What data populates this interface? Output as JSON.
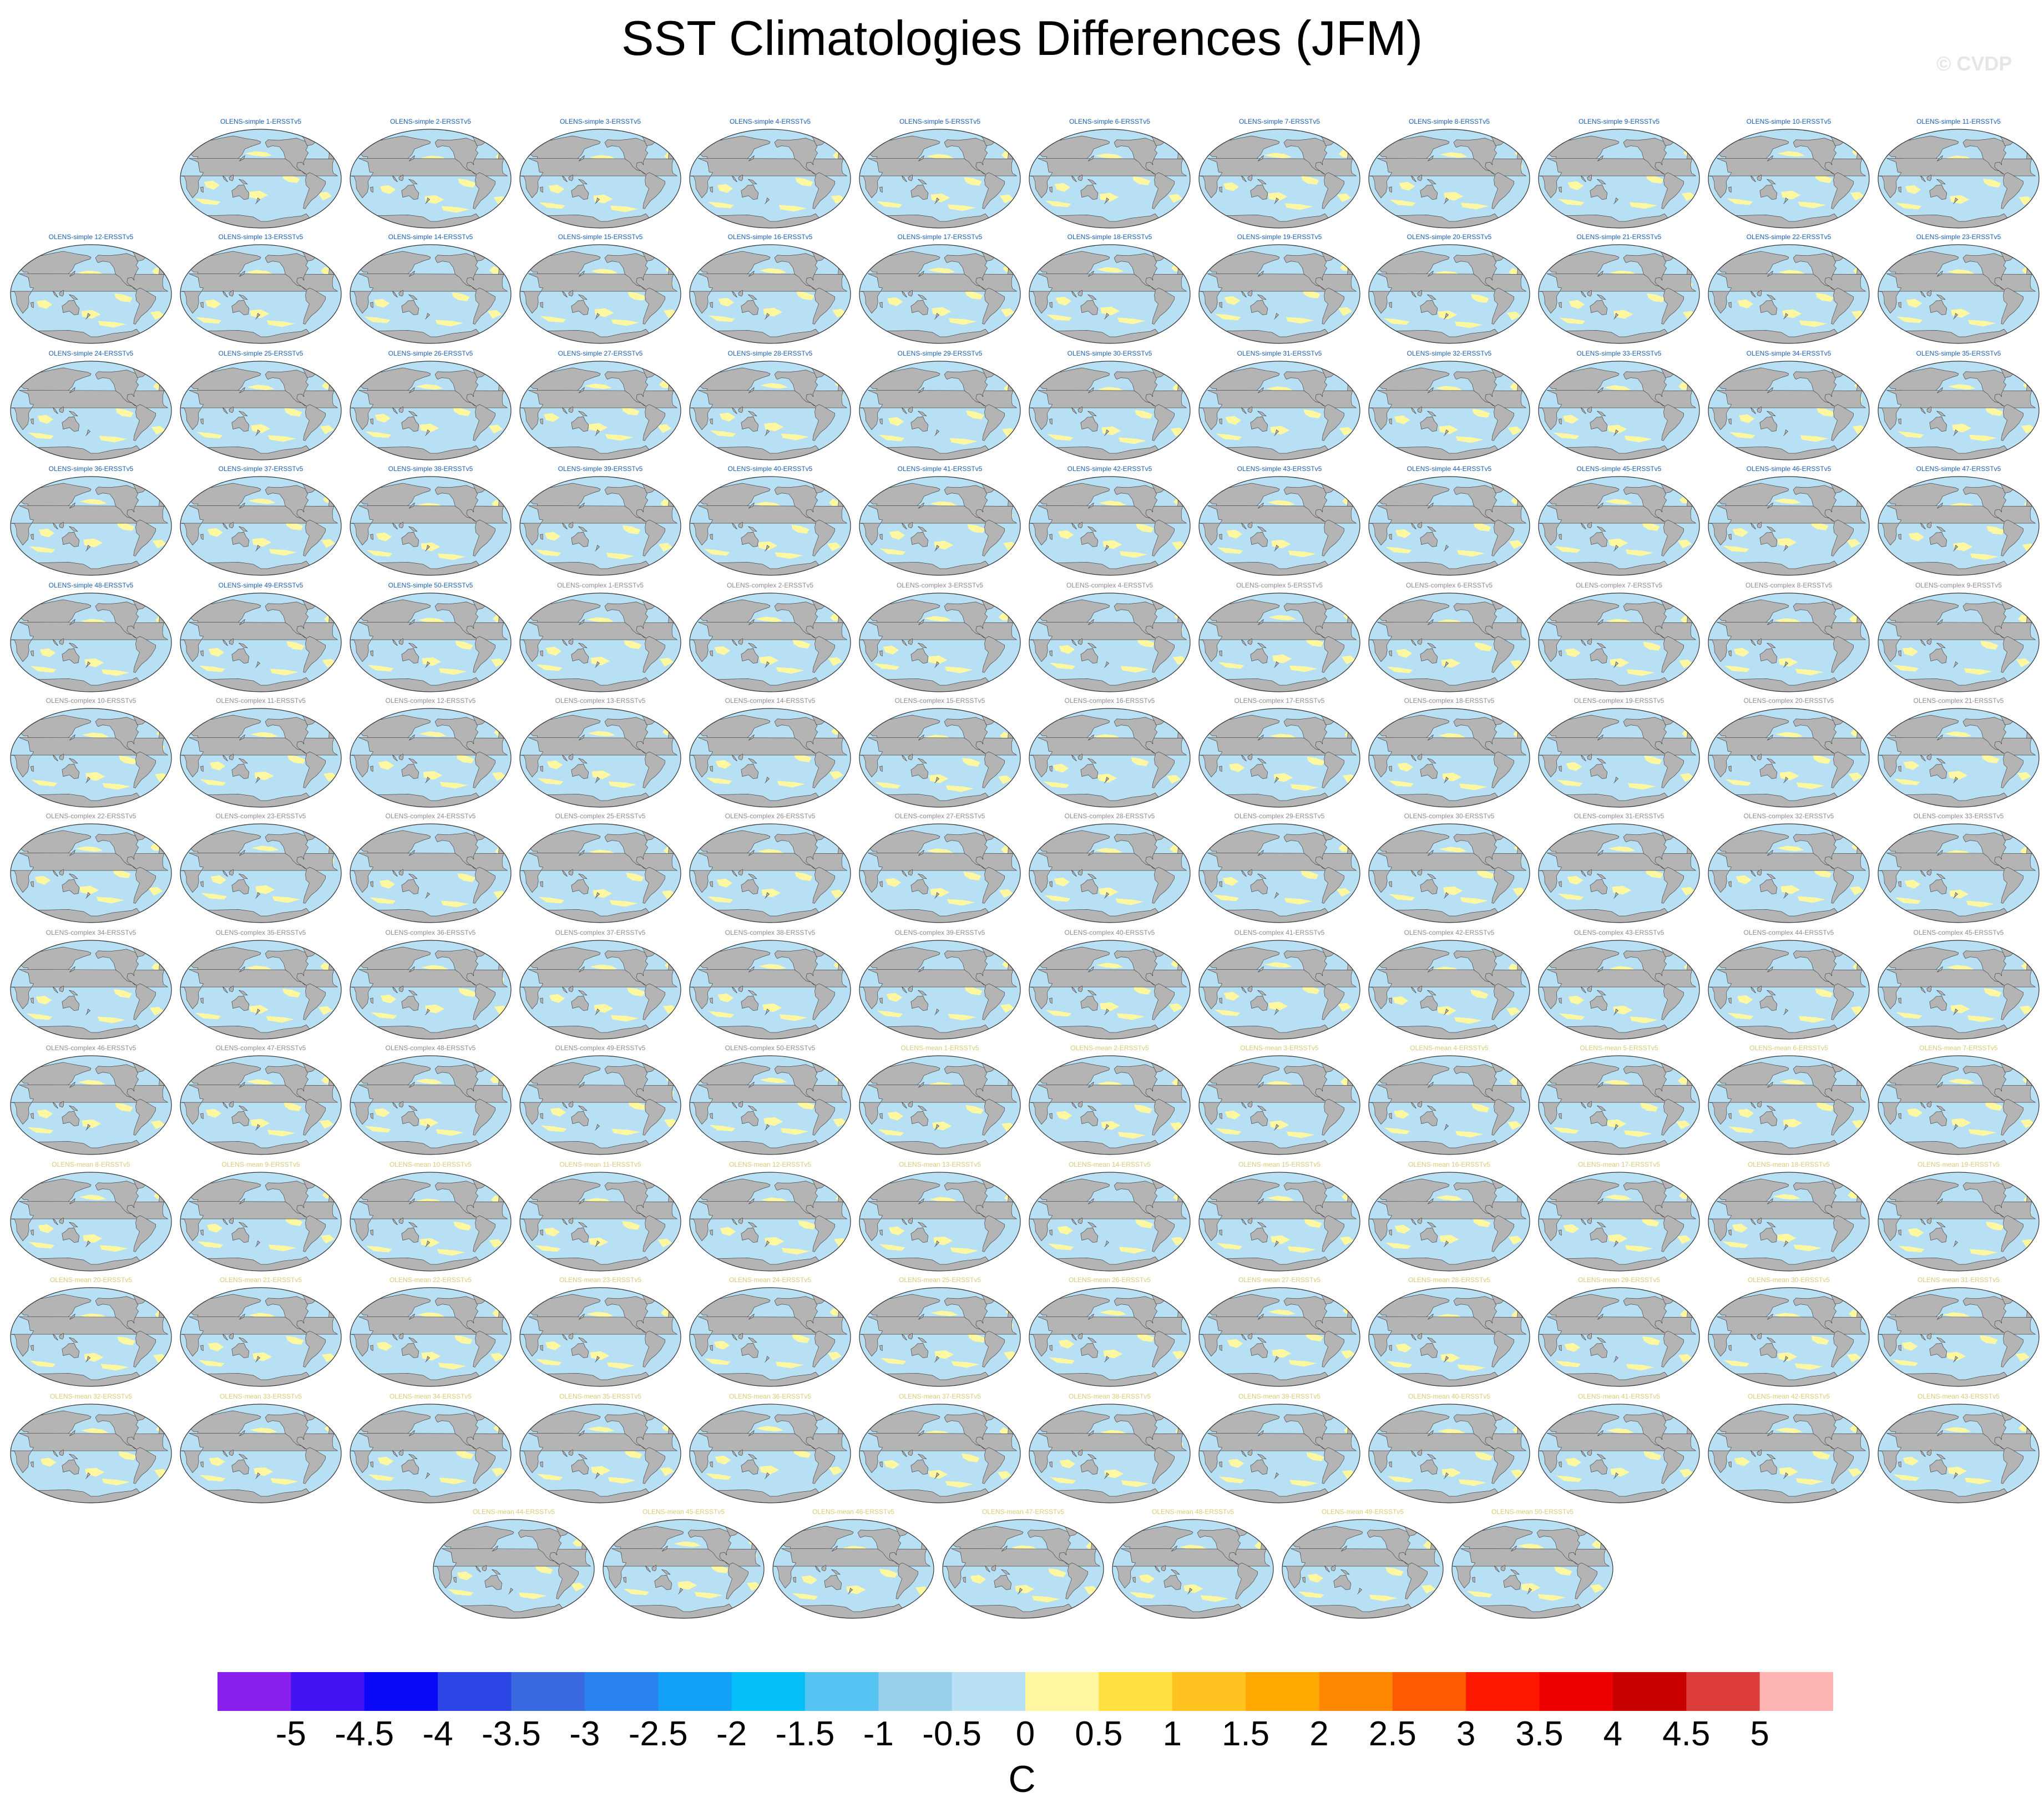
{
  "chart_data": {
    "type": "panel-grid of global map contour plots with shared colorbar",
    "title": "SST Climatologies Differences (JFM)",
    "watermark": "© CVDP",
    "colorbar": {
      "units": "C",
      "tick_labels": [
        "-5",
        "-4.5",
        "-4",
        "-3.5",
        "-3",
        "-2.5",
        "-2",
        "-1.5",
        "-1",
        "-0.5",
        "0",
        "0.5",
        "1",
        "1.5",
        "2",
        "2.5",
        "3",
        "3.5",
        "4",
        "4.5",
        "5"
      ],
      "colors": [
        "#8a1ff0",
        "#4212f4",
        "#0a0af8",
        "#2d46e6",
        "#3a6ae0",
        "#2a82f0",
        "#12a0f8",
        "#05c0f8",
        "#56c4f2",
        "#98cfeb",
        "#b8e0f5",
        "#fff8a0",
        "#ffe040",
        "#ffc21e",
        "#ffa800",
        "#ff8800",
        "#ff5a00",
        "#ff1800",
        "#ee0000",
        "#c80000",
        "#dc3c3c",
        "#ffb4b4"
      ]
    },
    "palette": {
      "ocean_cool": "#b8e0f5",
      "ocean_warm": "#fff8a0",
      "land": "#b4b4b4",
      "title_simple": "#1b5fb4",
      "title_complex": "#8c8c8c",
      "title_mean": "#d8cc78"
    },
    "panels": [
      "OLENS-simple 1-ERSSTv5",
      "OLENS-simple 2-ERSSTv5",
      "OLENS-simple 3-ERSSTv5",
      "OLENS-simple 4-ERSSTv5",
      "OLENS-simple 5-ERSSTv5",
      "OLENS-simple 6-ERSSTv5",
      "OLENS-simple 7-ERSSTv5",
      "OLENS-simple 8-ERSSTv5",
      "OLENS-simple 9-ERSSTv5",
      "OLENS-simple 10-ERSSTv5",
      "OLENS-simple 11-ERSSTv5",
      "OLENS-simple 12-ERSSTv5",
      "OLENS-simple 13-ERSSTv5",
      "OLENS-simple 14-ERSSTv5",
      "OLENS-simple 15-ERSSTv5",
      "OLENS-simple 16-ERSSTv5",
      "OLENS-simple 17-ERSSTv5",
      "OLENS-simple 18-ERSSTv5",
      "OLENS-simple 19-ERSSTv5",
      "OLENS-simple 20-ERSSTv5",
      "OLENS-simple 21-ERSSTv5",
      "OLENS-simple 22-ERSSTv5",
      "OLENS-simple 23-ERSSTv5",
      "OLENS-simple 24-ERSSTv5",
      "OLENS-simple 25-ERSSTv5",
      "OLENS-simple 26-ERSSTv5",
      "OLENS-simple 27-ERSSTv5",
      "OLENS-simple 28-ERSSTv5",
      "OLENS-simple 29-ERSSTv5",
      "OLENS-simple 30-ERSSTv5",
      "OLENS-simple 31-ERSSTv5",
      "OLENS-simple 32-ERSSTv5",
      "OLENS-simple 33-ERSSTv5",
      "OLENS-simple 34-ERSSTv5",
      "OLENS-simple 35-ERSSTv5",
      "OLENS-simple 36-ERSSTv5",
      "OLENS-simple 37-ERSSTv5",
      "OLENS-simple 38-ERSSTv5",
      "OLENS-simple 39-ERSSTv5",
      "OLENS-simple 40-ERSSTv5",
      "OLENS-simple 41-ERSSTv5",
      "OLENS-simple 42-ERSSTv5",
      "OLENS-simple 43-ERSSTv5",
      "OLENS-simple 44-ERSSTv5",
      "OLENS-simple 45-ERSSTv5",
      "OLENS-simple 46-ERSSTv5",
      "OLENS-simple 47-ERSSTv5",
      "OLENS-simple 48-ERSSTv5",
      "OLENS-simple 49-ERSSTv5",
      "OLENS-simple 50-ERSSTv5",
      "OLENS-complex 1-ERSSTv5",
      "OLENS-complex 2-ERSSTv5",
      "OLENS-complex 3-ERSSTv5",
      "OLENS-complex 4-ERSSTv5",
      "OLENS-complex 5-ERSSTv5",
      "OLENS-complex 6-ERSSTv5",
      "OLENS-complex 7-ERSSTv5",
      "OLENS-complex 8-ERSSTv5",
      "OLENS-complex 9-ERSSTv5",
      "OLENS-complex 10-ERSSTv5",
      "OLENS-complex 11-ERSSTv5",
      "OLENS-complex 12-ERSSTv5",
      "OLENS-complex 13-ERSSTv5",
      "OLENS-complex 14-ERSSTv5",
      "OLENS-complex 15-ERSSTv5",
      "OLENS-complex 16-ERSSTv5",
      "OLENS-complex 17-ERSSTv5",
      "OLENS-complex 18-ERSSTv5",
      "OLENS-complex 19-ERSSTv5",
      "OLENS-complex 20-ERSSTv5",
      "OLENS-complex 21-ERSSTv5",
      "OLENS-complex 22-ERSSTv5",
      "OLENS-complex 23-ERSSTv5",
      "OLENS-complex 24-ERSSTv5",
      "OLENS-complex 25-ERSSTv5",
      "OLENS-complex 26-ERSSTv5",
      "OLENS-complex 27-ERSSTv5",
      "OLENS-complex 28-ERSSTv5",
      "OLENS-complex 29-ERSSTv5",
      "OLENS-complex 30-ERSSTv5",
      "OLENS-complex 31-ERSSTv5",
      "OLENS-complex 32-ERSSTv5",
      "OLENS-complex 33-ERSSTv5",
      "OLENS-complex 34-ERSSTv5",
      "OLENS-complex 35-ERSSTv5",
      "OLENS-complex 36-ERSSTv5",
      "OLENS-complex 37-ERSSTv5",
      "OLENS-complex 38-ERSSTv5",
      "OLENS-complex 39-ERSSTv5",
      "OLENS-complex 40-ERSSTv5",
      "OLENS-complex 41-ERSSTv5",
      "OLENS-complex 42-ERSSTv5",
      "OLENS-complex 43-ERSSTv5",
      "OLENS-complex 44-ERSSTv5",
      "OLENS-complex 45-ERSSTv5",
      "OLENS-complex 46-ERSSTv5",
      "OLENS-complex 47-ERSSTv5",
      "OLENS-complex 48-ERSSTv5",
      "OLENS-complex 49-ERSSTv5",
      "OLENS-complex 50-ERSSTv5",
      "OLENS-mean 1-ERSSTv5",
      "OLENS-mean 2-ERSSTv5",
      "OLENS-mean 3-ERSSTv5",
      "OLENS-mean 4-ERSSTv5",
      "OLENS-mean 5-ERSSTv5",
      "OLENS-mean 6-ERSSTv5",
      "OLENS-mean 7-ERSSTv5",
      "OLENS-mean 8-ERSSTv5",
      "OLENS-mean 9-ERSSTv5",
      "OLENS-mean 10-ERSSTv5",
      "OLENS-mean 11-ERSSTv5",
      "OLENS-mean 12-ERSSTv5",
      "OLENS-mean 13-ERSSTv5",
      "OLENS-mean 14-ERSSTv5",
      "OLENS-mean 15-ERSSTv5",
      "OLENS-mean 16-ERSSTv5",
      "OLENS-mean 17-ERSSTv5",
      "OLENS-mean 18-ERSSTv5",
      "OLENS-mean 19-ERSSTv5",
      "OLENS-mean 20-ERSSTv5",
      "OLENS-mean 21-ERSSTv5",
      "OLENS-mean 22-ERSSTv5",
      "OLENS-mean 23-ERSSTv5",
      "OLENS-mean 24-ERSSTv5",
      "OLENS-mean 25-ERSSTv5",
      "OLENS-mean 26-ERSSTv5",
      "OLENS-mean 27-ERSSTv5",
      "OLENS-mean 28-ERSSTv5",
      "OLENS-mean 29-ERSSTv5",
      "OLENS-mean 30-ERSSTv5",
      "OLENS-mean 31-ERSSTv5",
      "OLENS-mean 32-ERSSTv5",
      "OLENS-mean 33-ERSSTv5",
      "OLENS-mean 34-ERSSTv5",
      "OLENS-mean 35-ERSSTv5",
      "OLENS-mean 36-ERSSTv5",
      "OLENS-mean 37-ERSSTv5",
      "OLENS-mean 38-ERSSTv5",
      "OLENS-mean 39-ERSSTv5",
      "OLENS-mean 40-ERSSTv5",
      "OLENS-mean 41-ERSSTv5",
      "OLENS-mean 42-ERSSTv5",
      "OLENS-mean 43-ERSSTv5",
      "OLENS-mean 44-ERSSTv5",
      "OLENS-mean 45-ERSSTv5",
      "OLENS-mean 46-ERSSTv5",
      "OLENS-mean 47-ERSSTv5",
      "OLENS-mean 48-ERSSTv5",
      "OLENS-mean 49-ERSSTv5",
      "OLENS-mean 50-ERSSTv5"
    ]
  }
}
